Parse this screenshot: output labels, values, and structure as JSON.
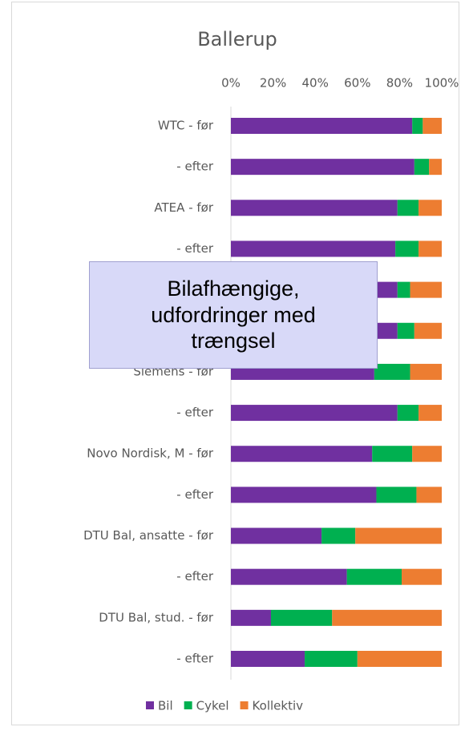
{
  "chart_data": {
    "type": "stacked_barh",
    "title": "Ballerup",
    "categories": [
      "WTC - før",
      "- efter",
      "ATEA - før",
      "- efter",
      null,
      null,
      "Siemens - før",
      "- efter",
      "Novo Nordisk, M - før",
      "- efter",
      "DTU Bal, ansatte - før",
      "- efter",
      "DTU Bal, stud. - før",
      "- efter"
    ],
    "series": [
      {
        "name": "Bil",
        "color": "#7030a0",
        "values": [
          86,
          87,
          79,
          78,
          79,
          79,
          68,
          79,
          67,
          69,
          43,
          55,
          19,
          35
        ]
      },
      {
        "name": "Cykel",
        "color": "#00b050",
        "values": [
          5,
          7,
          10,
          11,
          6,
          8,
          17,
          10,
          19,
          19,
          16,
          26,
          29,
          25
        ]
      },
      {
        "name": "Kollektiv",
        "color": "#ed7d31",
        "values": [
          9,
          6,
          11,
          11,
          15,
          13,
          15,
          11,
          14,
          12,
          41,
          19,
          52,
          40
        ]
      }
    ],
    "xlim": [
      0,
      100
    ],
    "xticks": [
      {
        "value": 0,
        "label": "0%"
      },
      {
        "value": 20,
        "label": "20%"
      },
      {
        "value": 40,
        "label": "40%"
      },
      {
        "value": 60,
        "label": "60%"
      },
      {
        "value": 80,
        "label": "80%"
      },
      {
        "value": 100,
        "label": "100%"
      }
    ],
    "annotation": "Bilafhængige, udfordringer med trængsel",
    "legend": "bottom"
  }
}
